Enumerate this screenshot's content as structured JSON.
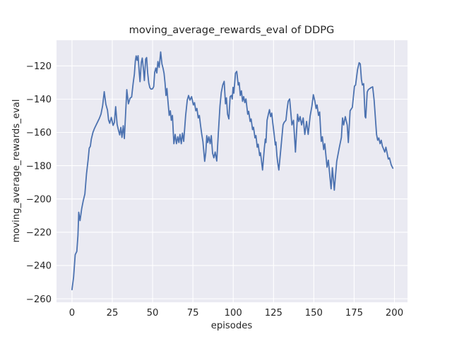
{
  "figure": {
    "title": "moving_average_rewards_eval of DDPG",
    "xlabel": "episodes",
    "ylabel": "moving_average_rewards_eval"
  },
  "colors": {
    "axes_background": "#EAEAF2",
    "figure_background": "#FFFFFF",
    "grid": "#FFFFFF",
    "line": "#4C72B0",
    "text": "#262626"
  },
  "chart_data": {
    "type": "line",
    "title": "moving_average_rewards_eval of DDPG",
    "xlabel": "episodes",
    "ylabel": "moving_average_rewards_eval",
    "legend": false,
    "grid": true,
    "x_ticks": [
      0,
      25,
      50,
      75,
      100,
      125,
      150,
      175,
      200
    ],
    "y_ticks": [
      -120,
      -140,
      -160,
      -180,
      -200,
      -220,
      -240,
      -260
    ],
    "xlim": [
      -9.6,
      208.1
    ],
    "ylim": [
      -262.1,
      -104.6
    ],
    "series": [
      {
        "name": "moving_average_rewards_eval",
        "color": "#4C72B0",
        "points": [
          [
            0,
            -254.5
          ],
          [
            1,
            -247
          ],
          [
            2,
            -233.5
          ],
          [
            3,
            -231.5
          ],
          [
            3.7,
            -222
          ],
          [
            4.2,
            -208
          ],
          [
            5,
            -213
          ],
          [
            6,
            -206
          ],
          [
            7,
            -201
          ],
          [
            8,
            -197
          ],
          [
            9,
            -185
          ],
          [
            10,
            -176.5
          ],
          [
            10.7,
            -169.5
          ],
          [
            11.4,
            -168.3
          ],
          [
            12,
            -164
          ],
          [
            13,
            -160
          ],
          [
            14,
            -157.5
          ],
          [
            15,
            -155.5
          ],
          [
            16,
            -153.5
          ],
          [
            17,
            -151.5
          ],
          [
            18,
            -149
          ],
          [
            19,
            -144
          ],
          [
            20,
            -135.5
          ],
          [
            21,
            -143
          ],
          [
            22,
            -146.5
          ],
          [
            22.7,
            -152.5
          ],
          [
            23.4,
            -154.5
          ],
          [
            24.4,
            -151
          ],
          [
            25.5,
            -155.8
          ],
          [
            26.3,
            -154
          ],
          [
            27.1,
            -144.5
          ],
          [
            28,
            -155.2
          ],
          [
            28.7,
            -158.1
          ],
          [
            29.6,
            -161.5
          ],
          [
            30.3,
            -157
          ],
          [
            31,
            -163
          ],
          [
            31.8,
            -156
          ],
          [
            32.5,
            -163.7
          ],
          [
            34,
            -134.3
          ],
          [
            35,
            -142.8
          ],
          [
            36,
            -139.5
          ],
          [
            37,
            -138.7
          ],
          [
            38,
            -130
          ],
          [
            38.7,
            -125
          ],
          [
            39.3,
            -117
          ],
          [
            39.8,
            -114
          ],
          [
            40.4,
            -116.7
          ],
          [
            41,
            -113.9
          ],
          [
            41.7,
            -123.8
          ],
          [
            42.2,
            -129.5
          ],
          [
            43,
            -117.9
          ],
          [
            43.6,
            -115.3
          ],
          [
            44.3,
            -121.7
          ],
          [
            44.9,
            -128.8
          ],
          [
            45.7,
            -115.9
          ],
          [
            46.3,
            -115
          ],
          [
            46.9,
            -123.8
          ],
          [
            47.6,
            -130.2
          ],
          [
            48.3,
            -133.1
          ],
          [
            49,
            -134
          ],
          [
            50,
            -133.8
          ],
          [
            50.7,
            -132.4
          ],
          [
            51.3,
            -123.9
          ],
          [
            52,
            -121.3
          ],
          [
            52.6,
            -124.3
          ],
          [
            53.3,
            -117.4
          ],
          [
            54.1,
            -120.9
          ],
          [
            55,
            -111.6
          ],
          [
            55.8,
            -118.9
          ],
          [
            56.5,
            -121.5
          ],
          [
            57.1,
            -124.4
          ],
          [
            57.7,
            -130.1
          ],
          [
            58.3,
            -137.8
          ],
          [
            58.9,
            -133.6
          ],
          [
            59.5,
            -141
          ],
          [
            60.3,
            -149.8
          ],
          [
            61,
            -147
          ],
          [
            61.6,
            -152.7
          ],
          [
            62.3,
            -149.8
          ],
          [
            63.2,
            -166.8
          ],
          [
            64,
            -161.2
          ],
          [
            64.8,
            -166.8
          ],
          [
            65.6,
            -162.6
          ],
          [
            66.3,
            -166.1
          ],
          [
            67,
            -161.2
          ],
          [
            67.8,
            -166.8
          ],
          [
            68.5,
            -160.4
          ],
          [
            69.3,
            -165.4
          ],
          [
            70.5,
            -149.8
          ],
          [
            71.5,
            -140.6
          ],
          [
            72.3,
            -137.8
          ],
          [
            73.2,
            -140.6
          ],
          [
            74.2,
            -138.5
          ],
          [
            75.3,
            -143.5
          ],
          [
            76,
            -142.1
          ],
          [
            76.8,
            -147
          ],
          [
            77.5,
            -145.6
          ],
          [
            78.3,
            -151.3
          ],
          [
            79,
            -149.8
          ],
          [
            79.8,
            -156.2
          ],
          [
            80.5,
            -161.2
          ],
          [
            81.2,
            -165.4
          ],
          [
            82.3,
            -177.4
          ],
          [
            83,
            -172
          ],
          [
            83.6,
            -161.9
          ],
          [
            84.2,
            -166.1
          ],
          [
            84.9,
            -162.6
          ],
          [
            85.7,
            -166.8
          ],
          [
            86.4,
            -161.9
          ],
          [
            87.2,
            -172.5
          ],
          [
            88,
            -175.3
          ],
          [
            88.8,
            -171.8
          ],
          [
            89.8,
            -177.2
          ],
          [
            90.8,
            -160
          ],
          [
            91.8,
            -144
          ],
          [
            92.6,
            -136
          ],
          [
            93.5,
            -131.5
          ],
          [
            94.4,
            -129.3
          ],
          [
            95.2,
            -142.8
          ],
          [
            95.8,
            -139.2
          ],
          [
            96.5,
            -149.1
          ],
          [
            97.3,
            -151.9
          ],
          [
            98.1,
            -138.5
          ],
          [
            98.8,
            -137.8
          ],
          [
            99.4,
            -139.9
          ],
          [
            99.9,
            -132.9
          ],
          [
            100.4,
            -136.4
          ],
          [
            101.4,
            -124.4
          ],
          [
            102.2,
            -123.3
          ],
          [
            103.1,
            -131.5
          ],
          [
            103.7,
            -130.1
          ],
          [
            104.4,
            -137.8
          ],
          [
            105.1,
            -135
          ],
          [
            105.8,
            -141.3
          ],
          [
            106.5,
            -138.5
          ],
          [
            107.2,
            -142.1
          ],
          [
            107.9,
            -139.9
          ],
          [
            109,
            -149.1
          ],
          [
            109.6,
            -147.3
          ],
          [
            110.5,
            -153.4
          ],
          [
            111.1,
            -151.9
          ],
          [
            112,
            -158.3
          ],
          [
            112.6,
            -156.9
          ],
          [
            113.5,
            -163.3
          ],
          [
            114.1,
            -161.9
          ],
          [
            114.9,
            -168.9
          ],
          [
            115.5,
            -167.1
          ],
          [
            116.4,
            -173.9
          ],
          [
            116.9,
            -172.2
          ],
          [
            117.4,
            -176
          ],
          [
            118.2,
            -182.6
          ],
          [
            119.3,
            -169.6
          ],
          [
            119.9,
            -164
          ],
          [
            120.3,
            -166.1
          ],
          [
            121,
            -152.7
          ],
          [
            121.8,
            -149.1
          ],
          [
            122.5,
            -146.3
          ],
          [
            123.2,
            -150.5
          ],
          [
            123.9,
            -148.4
          ],
          [
            124.6,
            -154.8
          ],
          [
            125.4,
            -161.2
          ],
          [
            126.1,
            -167.5
          ],
          [
            126.5,
            -165.8
          ],
          [
            127.1,
            -173.9
          ],
          [
            127.6,
            -178.1
          ],
          [
            128.3,
            -182.6
          ],
          [
            129.5,
            -170.3
          ],
          [
            130.1,
            -164
          ],
          [
            130.9,
            -155.5
          ],
          [
            131.5,
            -154.1
          ],
          [
            132.7,
            -152.7
          ],
          [
            133.4,
            -146.3
          ],
          [
            134.1,
            -141.3
          ],
          [
            135,
            -139.9
          ],
          [
            136.4,
            -155.5
          ],
          [
            137.4,
            -152.7
          ],
          [
            138.6,
            -171.8
          ],
          [
            139.9,
            -149.1
          ],
          [
            140.7,
            -153.4
          ],
          [
            141.5,
            -150.5
          ],
          [
            142.4,
            -155.5
          ],
          [
            143.4,
            -151.3
          ],
          [
            144.4,
            -161.2
          ],
          [
            145.5,
            -153.4
          ],
          [
            146.5,
            -161.2
          ],
          [
            147.7,
            -150.2
          ],
          [
            148.8,
            -144.2
          ],
          [
            149.7,
            -137.3
          ],
          [
            150.6,
            -141
          ],
          [
            151.4,
            -145.6
          ],
          [
            152,
            -143.5
          ],
          [
            152.9,
            -149.8
          ],
          [
            153.6,
            -147.7
          ],
          [
            154.6,
            -165.4
          ],
          [
            155.3,
            -162.6
          ],
          [
            156.1,
            -170.3
          ],
          [
            156.8,
            -166.8
          ],
          [
            158.2,
            -180.9
          ],
          [
            159,
            -176.7
          ],
          [
            160.1,
            -187.9
          ],
          [
            160.7,
            -193.9
          ],
          [
            161.5,
            -181.2
          ],
          [
            162.7,
            -194.7
          ],
          [
            164.2,
            -177.4
          ],
          [
            165.7,
            -169.6
          ],
          [
            167.1,
            -163
          ],
          [
            167.8,
            -151.3
          ],
          [
            168.5,
            -155.5
          ],
          [
            169.5,
            -150.5
          ],
          [
            170.7,
            -155.5
          ],
          [
            171.4,
            -166.1
          ],
          [
            172.5,
            -147
          ],
          [
            173.9,
            -144.9
          ],
          [
            175.2,
            -132.2
          ],
          [
            175.9,
            -131.5
          ],
          [
            177.1,
            -122.3
          ],
          [
            178.1,
            -118.1
          ],
          [
            178.8,
            -118.8
          ],
          [
            179.5,
            -128
          ],
          [
            180.1,
            -131.5
          ],
          [
            180.9,
            -130.7
          ],
          [
            181.8,
            -150.5
          ],
          [
            182.2,
            -151.3
          ],
          [
            183.1,
            -135.7
          ],
          [
            183.8,
            -134.3
          ],
          [
            184.5,
            -133.8
          ],
          [
            185.4,
            -133.1
          ],
          [
            186.5,
            -132.6
          ],
          [
            187.4,
            -140.6
          ],
          [
            188.9,
            -161.2
          ],
          [
            189.6,
            -164.7
          ],
          [
            190.3,
            -163.3
          ],
          [
            191.1,
            -166.8
          ],
          [
            191.8,
            -164.7
          ],
          [
            192.5,
            -168.2
          ],
          [
            194,
            -171.8
          ],
          [
            194.7,
            -168.9
          ],
          [
            196.2,
            -176
          ],
          [
            196.9,
            -175.3
          ],
          [
            198,
            -179.5
          ],
          [
            199,
            -181.5
          ]
        ]
      }
    ]
  }
}
